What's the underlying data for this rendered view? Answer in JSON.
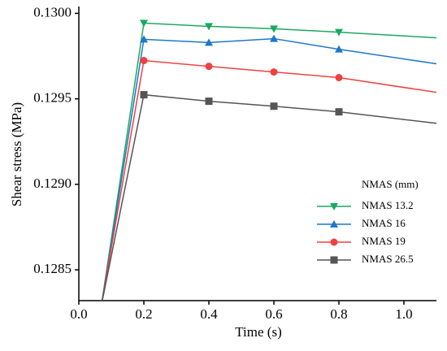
{
  "chart_data": {
    "type": "line",
    "x_label": "Time (s)",
    "y_label": "Shear stress (MPa)",
    "legend_title": "NMAS  (mm)",
    "legend_position": "lower right",
    "x": [
      0.07,
      0.2,
      0.4,
      0.6,
      0.8,
      1.1
    ],
    "series": [
      {
        "name": "NMAS 13.2",
        "color": "#1aa862",
        "marker": "triangle-down",
        "values": [
          0.1283,
          0.129943,
          0.129924,
          0.12991,
          0.12989,
          0.129857
        ]
      },
      {
        "name": "NMAS 16",
        "color": "#1f77c8",
        "marker": "triangle-up",
        "values": [
          0.1283,
          0.129848,
          0.129829,
          0.129852,
          0.12979,
          0.129705
        ]
      },
      {
        "name": "NMAS 19",
        "color": "#f04040",
        "marker": "circle",
        "values": [
          0.1283,
          0.129724,
          0.12969,
          0.129657,
          0.129624,
          0.129538
        ]
      },
      {
        "name": "NMAS 26.5",
        "color": "#555555",
        "marker": "square",
        "values": [
          0.1283,
          0.129524,
          0.129486,
          0.129457,
          0.129424,
          0.129357
        ]
      }
    ],
    "xlim": [
      0,
      1.1
    ],
    "xticks": [
      {
        "value": 0,
        "label": "0.0"
      },
      0.2,
      0.4,
      0.6,
      0.8,
      {
        "value": 1,
        "label": "1.0"
      }
    ],
    "ylim": [
      0.12832,
      0.13004
    ],
    "yticks": [
      0.1285,
      {
        "value": 0.129,
        "label": "0.1290"
      },
      0.1295,
      {
        "value": 0.13,
        "label": "0.1300"
      }
    ]
  }
}
